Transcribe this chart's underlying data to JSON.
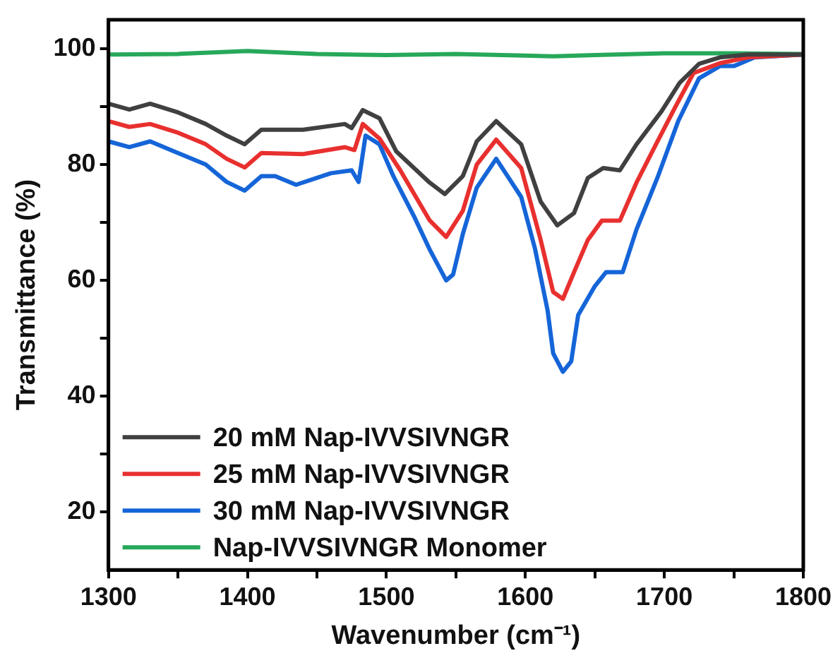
{
  "chart_data": {
    "type": "line",
    "xlabel": "Wavenumber (cm⁻¹)",
    "ylabel": "Transmittance (%)",
    "xlim": [
      1300,
      1800
    ],
    "xticks": [
      1300,
      {
        "value": 1350,
        "label": null
      },
      1400,
      {
        "value": 1450,
        "label": null
      },
      1500,
      {
        "value": 1550,
        "label": null
      },
      1600,
      {
        "value": 1650,
        "label": null
      },
      1700,
      {
        "value": 1750,
        "label": null
      },
      1800
    ],
    "ylim": [
      10,
      105
    ],
    "yticks": [
      20,
      {
        "value": 30,
        "label": null
      },
      40,
      {
        "value": 50,
        "label": null
      },
      60,
      {
        "value": 70,
        "label": null
      },
      80,
      {
        "value": 90,
        "label": null
      },
      100
    ],
    "grid": false,
    "legend": "bottom left",
    "marker": "none",
    "line_style": "solid",
    "series": [
      {
        "name": "20 mM Nap-IVVSIVNGR",
        "color": "#404040",
        "x": [
          1300,
          1315,
          1330,
          1350,
          1370,
          1385,
          1398,
          1410,
          1440,
          1470,
          1475,
          1483,
          1495,
          1507,
          1531,
          1542,
          1555,
          1565,
          1579,
          1597,
          1611,
          1623,
          1635,
          1645,
          1656,
          1668,
          1680,
          1698,
          1711,
          1725,
          1740,
          1760,
          1800
        ],
        "values": [
          90.5,
          89.5,
          90.5,
          89,
          87,
          85,
          83.5,
          86,
          86,
          87,
          86.3,
          89.4,
          88,
          82.3,
          76.9,
          74.9,
          78,
          84,
          87.5,
          83.5,
          73.6,
          69.5,
          71.6,
          77.7,
          79.4,
          79,
          83.5,
          89.2,
          94.1,
          97.4,
          98.5,
          99,
          99
        ]
      },
      {
        "name": "25 mM Nap-IVVSIVNGR",
        "color": "#e8302f",
        "x": [
          1300,
          1315,
          1330,
          1350,
          1370,
          1385,
          1398,
          1410,
          1440,
          1470,
          1477,
          1483,
          1495,
          1510,
          1531,
          1543,
          1555,
          1565,
          1579,
          1597,
          1611,
          1620,
          1627,
          1635,
          1645,
          1655,
          1668,
          1680,
          1694,
          1708,
          1721,
          1740,
          1760,
          1800
        ],
        "values": [
          87.5,
          86.5,
          87,
          85.5,
          83.5,
          81,
          79.5,
          82,
          81.8,
          83,
          82.5,
          87,
          84.5,
          79,
          70.4,
          67.5,
          72,
          80,
          84.3,
          79.4,
          67,
          58,
          56.8,
          61.4,
          67,
          70.3,
          70.3,
          76.9,
          83.5,
          90,
          95.8,
          97.5,
          98.5,
          99
        ]
      },
      {
        "name": "30 mM Nap-IVVSIVNGR",
        "color": "#1565d8",
        "x": [
          1300,
          1315,
          1330,
          1350,
          1370,
          1385,
          1398,
          1410,
          1420,
          1435,
          1460,
          1475,
          1480,
          1485,
          1495,
          1505,
          1520,
          1531,
          1543,
          1548,
          1555,
          1565,
          1579,
          1597,
          1607,
          1616,
          1620,
          1627,
          1633,
          1638,
          1650,
          1658,
          1670,
          1680,
          1695,
          1710,
          1725,
          1740,
          1750,
          1765,
          1800
        ],
        "values": [
          84,
          83,
          84,
          82,
          80,
          77,
          75.5,
          78,
          78,
          76.5,
          78.5,
          79,
          77,
          85,
          83.5,
          78,
          71,
          65.4,
          60,
          61,
          68,
          76,
          81,
          74.4,
          65.4,
          54.8,
          47.4,
          44.2,
          46,
          54,
          59,
          61.4,
          61.4,
          68.8,
          77.7,
          87.5,
          94.9,
          97,
          97,
          98.5,
          99
        ]
      },
      {
        "name": "Nap-IVVSIVNGR Monomer",
        "color": "#27a85a",
        "x": [
          1300,
          1350,
          1400,
          1450,
          1500,
          1550,
          1600,
          1620,
          1650,
          1700,
          1750,
          1800
        ],
        "values": [
          99,
          99.1,
          99.6,
          99.1,
          98.9,
          99.1,
          98.8,
          98.7,
          98.9,
          99.2,
          99.2,
          99.1
        ]
      }
    ]
  }
}
